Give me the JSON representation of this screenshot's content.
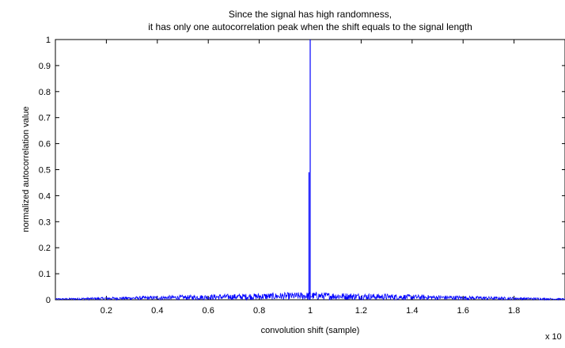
{
  "chart_data": {
    "type": "line",
    "title_lines": [
      "Since the signal has high randomness,",
      "it has only one autocorrelation peak when the shift equals to the signal length"
    ],
    "xlabel": "convolution shift (sample)",
    "ylabel": "normalized autocorrelation value",
    "x_exponent_label": "x 10",
    "xlim": [
      0,
      2.0
    ],
    "ylim": [
      0,
      1
    ],
    "x_ticks": [
      0.2,
      0.4,
      0.6,
      0.8,
      1,
      1.2,
      1.4,
      1.6,
      1.8
    ],
    "x_tick_labels": [
      "0.2",
      "0.4",
      "0.6",
      "0.8",
      "1",
      "1.2",
      "1.4",
      "1.6",
      "1.8"
    ],
    "y_ticks": [
      0,
      0.1,
      0.2,
      0.3,
      0.4,
      0.5,
      0.6,
      0.7,
      0.8,
      0.9,
      1
    ],
    "y_tick_labels": [
      "0",
      "0.1",
      "0.2",
      "0.3",
      "0.4",
      "0.5",
      "0.6",
      "0.7",
      "0.8",
      "0.9",
      "1"
    ],
    "grid": false,
    "line_color": "#0000ff",
    "series": [
      {
        "peak_at_x": 1.0,
        "peak_value": 1.0,
        "secondary_peak_value": 0.49,
        "noise_floor_max": 0.03,
        "noise_floor_at_edges": 0.005
      }
    ]
  }
}
